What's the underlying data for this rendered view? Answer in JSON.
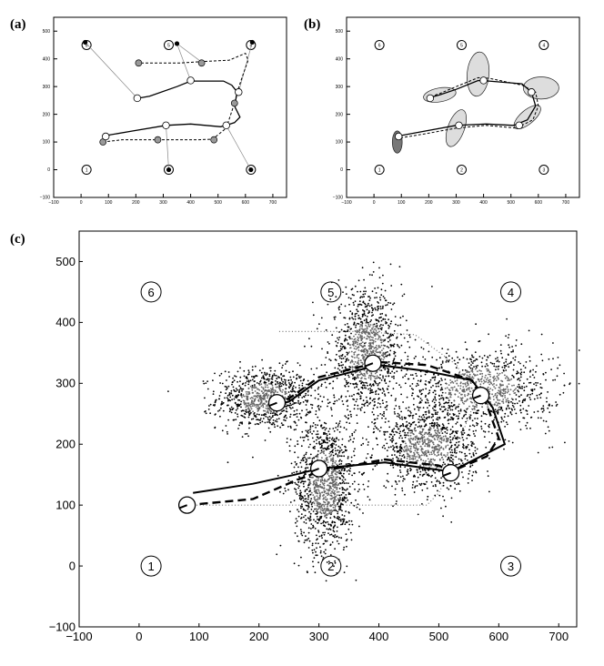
{
  "panel_labels": {
    "a": "(a)",
    "b": "(b)",
    "c": "(c)"
  },
  "chart_data": [
    {
      "panel": "(a)",
      "type": "scatter",
      "xlim": [
        -100,
        750
      ],
      "ylim": [
        -100,
        550
      ],
      "xticks": [
        -100,
        0,
        100,
        200,
        300,
        400,
        500,
        600,
        700
      ],
      "yticks": [
        -100,
        0,
        100,
        200,
        300,
        400,
        500
      ],
      "beacons": [
        {
          "id": "1",
          "x": 20,
          "y": 0
        },
        {
          "id": "2",
          "x": 320,
          "y": 0
        },
        {
          "id": "3",
          "x": 620,
          "y": 0
        },
        {
          "id": "4",
          "x": 620,
          "y": 450
        },
        {
          "id": "5",
          "x": 320,
          "y": 450
        },
        {
          "id": "6",
          "x": 20,
          "y": 450
        }
      ],
      "solid_path": [
        [
          80,
          120
        ],
        [
          100,
          125
        ],
        [
          190,
          140
        ],
        [
          310,
          160
        ],
        [
          400,
          165
        ],
        [
          510,
          155
        ],
        [
          560,
          170
        ],
        [
          580,
          190
        ],
        [
          560,
          230
        ],
        [
          570,
          280
        ],
        [
          550,
          305
        ],
        [
          520,
          320
        ],
        [
          400,
          320
        ],
        [
          350,
          300
        ],
        [
          250,
          265
        ],
        [
          210,
          258
        ]
      ],
      "dashed_path": [
        [
          80,
          100
        ],
        [
          150,
          108
        ],
        [
          270,
          108
        ],
        [
          430,
          108
        ],
        [
          480,
          110
        ],
        [
          530,
          150
        ],
        [
          560,
          240
        ],
        [
          570,
          280
        ],
        [
          590,
          340
        ],
        [
          610,
          395
        ],
        [
          600,
          420
        ],
        [
          540,
          395
        ],
        [
          440,
          390
        ],
        [
          360,
          385
        ],
        [
          310,
          385
        ],
        [
          270,
          385
        ],
        [
          230,
          385
        ],
        [
          205,
          385
        ]
      ],
      "white_points": [
        [
          90,
          120
        ],
        [
          310,
          160
        ],
        [
          530,
          160
        ],
        [
          575,
          280
        ],
        [
          400,
          322
        ],
        [
          205,
          258
        ]
      ],
      "gray_points": [
        [
          80,
          100
        ],
        [
          280,
          108
        ],
        [
          485,
          108
        ],
        [
          560,
          240
        ],
        [
          440,
          385
        ],
        [
          210,
          385
        ]
      ],
      "black_points": [
        [
          15,
          460
        ],
        [
          350,
          455
        ],
        [
          625,
          460
        ],
        [
          320,
          0
        ],
        [
          620,
          0
        ]
      ],
      "thin_lines": [
        [
          [
            15,
            460
          ],
          [
            205,
            258
          ]
        ],
        [
          [
            350,
            455
          ],
          [
            400,
            322
          ]
        ],
        [
          [
            625,
            460
          ],
          [
            575,
            280
          ]
        ],
        [
          [
            320,
            0
          ],
          [
            310,
            160
          ]
        ],
        [
          [
            620,
            0
          ],
          [
            530,
            160
          ]
        ],
        [
          [
            350,
            455
          ],
          [
            445,
            385
          ]
        ]
      ]
    },
    {
      "panel": "(b)",
      "type": "scatter",
      "xlim": [
        -100,
        750
      ],
      "ylim": [
        -100,
        550
      ],
      "xticks": [
        -100,
        0,
        100,
        200,
        300,
        400,
        500,
        600,
        700
      ],
      "yticks": [
        -100,
        0,
        100,
        200,
        300,
        400,
        500
      ],
      "beacons": [
        {
          "id": "1",
          "x": 20,
          "y": 0
        },
        {
          "id": "2",
          "x": 320,
          "y": 0
        },
        {
          "id": "3",
          "x": 620,
          "y": 0
        },
        {
          "id": "4",
          "x": 620,
          "y": 450
        },
        {
          "id": "5",
          "x": 320,
          "y": 450
        },
        {
          "id": "6",
          "x": 20,
          "y": 450
        }
      ],
      "solid_path": [
        [
          80,
          120
        ],
        [
          190,
          140
        ],
        [
          300,
          160
        ],
        [
          410,
          165
        ],
        [
          510,
          160
        ],
        [
          560,
          180
        ],
        [
          590,
          230
        ],
        [
          575,
          280
        ],
        [
          540,
          310
        ],
        [
          420,
          320
        ],
        [
          380,
          322
        ],
        [
          300,
          290
        ],
        [
          240,
          270
        ],
        [
          210,
          262
        ]
      ],
      "dashed_path": [
        [
          80,
          112
        ],
        [
          190,
          130
        ],
        [
          300,
          150
        ],
        [
          410,
          160
        ],
        [
          520,
          150
        ],
        [
          580,
          180
        ],
        [
          600,
          230
        ],
        [
          590,
          280
        ],
        [
          540,
          305
        ],
        [
          420,
          330
        ],
        [
          380,
          332
        ],
        [
          300,
          300
        ],
        [
          240,
          275
        ],
        [
          210,
          265
        ]
      ],
      "ellipses": [
        {
          "cx": 85,
          "cy": 100,
          "rx": 18,
          "ry": 40,
          "angle": 0,
          "fill": "#777"
        },
        {
          "cx": 300,
          "cy": 150,
          "rx": 30,
          "ry": 70,
          "angle": 20,
          "fill": "#ddd"
        },
        {
          "cx": 380,
          "cy": 345,
          "rx": 40,
          "ry": 80,
          "angle": 5,
          "fill": "#ddd"
        },
        {
          "cx": 240,
          "cy": 270,
          "rx": 60,
          "ry": 25,
          "angle": -10,
          "fill": "#ddd"
        },
        {
          "cx": 560,
          "cy": 190,
          "rx": 60,
          "ry": 25,
          "angle": -40,
          "fill": "#ddd"
        },
        {
          "cx": 610,
          "cy": 295,
          "rx": 65,
          "ry": 40,
          "angle": 0,
          "fill": "#ddd"
        }
      ],
      "white_points": [
        [
          90,
          120
        ],
        [
          310,
          160
        ],
        [
          530,
          160
        ],
        [
          575,
          280
        ],
        [
          400,
          322
        ],
        [
          205,
          258
        ]
      ]
    },
    {
      "panel": "(c)",
      "type": "scatter",
      "xlim": [
        -100,
        730
      ],
      "ylim": [
        -100,
        550
      ],
      "xticks": [
        -100,
        0,
        100,
        200,
        300,
        400,
        500,
        600,
        700
      ],
      "yticks": [
        -100,
        0,
        100,
        200,
        300,
        400,
        500
      ],
      "beacons": [
        {
          "id": "1",
          "x": 20,
          "y": 0
        },
        {
          "id": "2",
          "x": 320,
          "y": 0
        },
        {
          "id": "3",
          "x": 620,
          "y": 0
        },
        {
          "id": "4",
          "x": 620,
          "y": 450
        },
        {
          "id": "5",
          "x": 320,
          "y": 450
        },
        {
          "id": "6",
          "x": 20,
          "y": 450
        }
      ],
      "solid_path": [
        [
          90,
          120
        ],
        [
          190,
          135
        ],
        [
          260,
          150
        ],
        [
          300,
          160
        ],
        [
          410,
          170
        ],
        [
          520,
          155
        ],
        [
          580,
          185
        ],
        [
          610,
          200
        ],
        [
          590,
          260
        ],
        [
          575,
          280
        ],
        [
          555,
          305
        ],
        [
          480,
          320
        ],
        [
          400,
          330
        ],
        [
          360,
          320
        ],
        [
          300,
          305
        ],
        [
          250,
          270
        ],
        [
          230,
          265
        ]
      ],
      "dashed_path": [
        [
          80,
          100
        ],
        [
          190,
          110
        ],
        [
          260,
          140
        ],
        [
          300,
          155
        ],
        [
          410,
          175
        ],
        [
          500,
          165
        ],
        [
          520,
          155
        ],
        [
          580,
          180
        ],
        [
          600,
          210
        ],
        [
          580,
          265
        ],
        [
          555,
          305
        ],
        [
          480,
          330
        ],
        [
          400,
          335
        ],
        [
          360,
          325
        ],
        [
          300,
          310
        ],
        [
          250,
          275
        ],
        [
          230,
          270
        ]
      ],
      "dotted_path": [
        [
          80,
          100
        ],
        [
          200,
          100
        ],
        [
          300,
          100
        ],
        [
          400,
          100
        ],
        [
          480,
          100
        ],
        [
          500,
          120
        ],
        [
          520,
          160
        ],
        [
          540,
          220
        ],
        [
          560,
          270
        ],
        [
          530,
          330
        ],
        [
          460,
          380
        ],
        [
          360,
          385
        ],
        [
          300,
          385
        ],
        [
          230,
          385
        ]
      ],
      "white_markers": [
        [
          80,
          100
        ],
        [
          300,
          160
        ],
        [
          390,
          333
        ],
        [
          230,
          268
        ],
        [
          520,
          153
        ],
        [
          570,
          280
        ]
      ],
      "clouds": [
        {
          "cx": 210,
          "cy": 275,
          "sx": 40,
          "sy": 25,
          "n": 900
        },
        {
          "cx": 310,
          "cy": 135,
          "sx": 25,
          "sy": 55,
          "n": 1200
        },
        {
          "cx": 380,
          "cy": 350,
          "sx": 30,
          "sy": 50,
          "n": 1100
        },
        {
          "cx": 480,
          "cy": 195,
          "sx": 40,
          "sy": 35,
          "n": 1000
        },
        {
          "cx": 570,
          "cy": 290,
          "sx": 60,
          "sy": 35,
          "n": 1000
        }
      ]
    }
  ]
}
